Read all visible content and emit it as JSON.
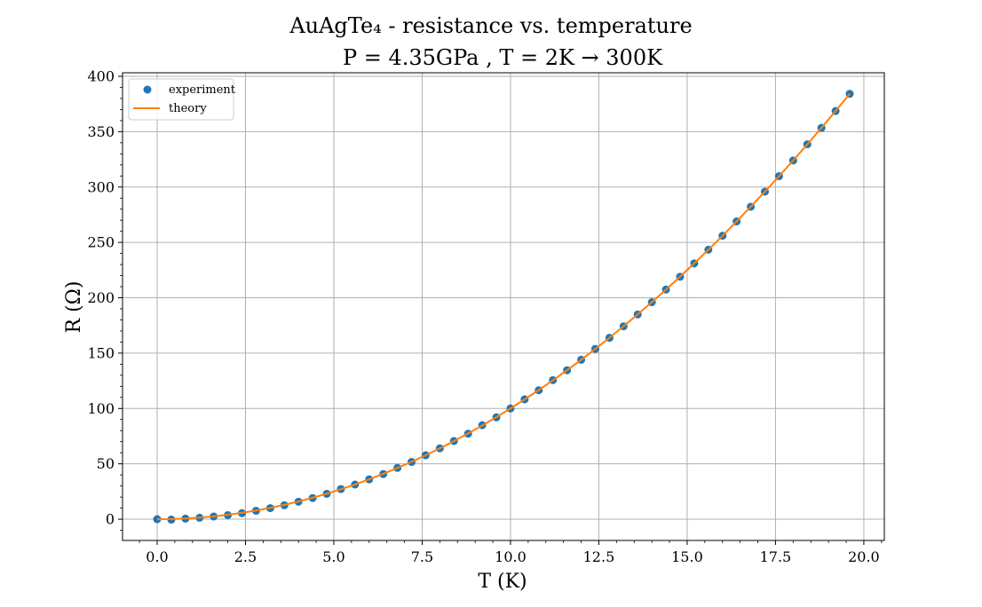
{
  "chart_data": {
    "type": "scatter",
    "title_lines": [
      "AuAgTe₄ - resistance vs. temperature",
      "P = 4.35GPa , T = 2K → 300K"
    ],
    "xlabel": "T (K)",
    "ylabel": "R (Ω)",
    "xlim": [
      -0.98,
      20.58
    ],
    "ylim": [
      -19.2,
      403.2
    ],
    "xticks": [
      0.0,
      2.5,
      5.0,
      7.5,
      10.0,
      12.5,
      15.0,
      17.5,
      20.0
    ],
    "xtick_labels": [
      "0.0",
      "2.5",
      "5.0",
      "7.5",
      "10.0",
      "12.5",
      "15.0",
      "17.5",
      "20.0"
    ],
    "yticks": [
      0,
      50,
      100,
      150,
      200,
      250,
      300,
      350,
      400
    ],
    "ytick_labels": [
      "0",
      "50",
      "100",
      "150",
      "200",
      "250",
      "300",
      "350",
      "400"
    ],
    "grid": true,
    "legend_position": "upper-left",
    "series": [
      {
        "name": "experiment",
        "kind": "scatter",
        "color": "#1f77b4",
        "x": [
          0.0,
          0.4,
          0.8,
          1.2,
          1.6,
          2.0,
          2.4,
          2.8,
          3.2,
          3.6,
          4.0,
          4.4,
          4.8,
          5.2,
          5.6,
          6.0,
          6.4,
          6.8,
          7.2,
          7.6,
          8.0,
          8.4,
          8.8,
          9.2,
          9.6,
          10.0,
          10.4,
          10.8,
          11.2,
          11.6,
          12.0,
          12.4,
          12.8,
          13.2,
          13.6,
          14.0,
          14.4,
          14.8,
          15.2,
          15.6,
          16.0,
          16.4,
          16.8,
          17.2,
          17.6,
          18.0,
          18.4,
          18.8,
          19.2,
          19.6
        ],
        "y": [
          0.0,
          -0.4,
          0.5,
          1.3,
          2.4,
          3.6,
          5.4,
          7.6,
          10.0,
          12.6,
          15.8,
          19.1,
          22.9,
          27.2,
          31.3,
          36.0,
          40.8,
          46.3,
          51.7,
          57.7,
          64.0,
          70.6,
          77.2,
          84.9,
          92.0,
          100.0,
          108.2,
          116.5,
          125.6,
          134.5,
          144.0,
          153.8,
          163.8,
          174.2,
          184.9,
          196.0,
          207.4,
          219.0,
          231.0,
          243.4,
          256.0,
          268.9,
          282.2,
          295.8,
          309.8,
          324.0,
          338.6,
          353.4,
          368.6,
          384.2
        ]
      },
      {
        "name": "theory",
        "kind": "line",
        "color": "#ff7f0e",
        "x": [
          0.0,
          0.4,
          0.8,
          1.2,
          1.6,
          2.0,
          2.4,
          2.8,
          3.2,
          3.6,
          4.0,
          4.4,
          4.8,
          5.2,
          5.6,
          6.0,
          6.4,
          6.8,
          7.2,
          7.6,
          8.0,
          8.4,
          8.8,
          9.2,
          9.6,
          10.0,
          10.4,
          10.8,
          11.2,
          11.6,
          12.0,
          12.4,
          12.8,
          13.2,
          13.6,
          14.0,
          14.4,
          14.8,
          15.2,
          15.6,
          16.0,
          16.4,
          16.8,
          17.2,
          17.6,
          18.0,
          18.4,
          18.8,
          19.2,
          19.6
        ],
        "y": [
          0.0,
          0.16,
          0.64,
          1.44,
          2.56,
          4.0,
          5.76,
          7.84,
          10.24,
          12.96,
          16.0,
          19.36,
          23.04,
          27.04,
          31.36,
          36.0,
          40.96,
          46.24,
          51.84,
          57.76,
          64.0,
          70.56,
          77.44,
          84.64,
          92.16,
          100.0,
          108.16,
          116.64,
          125.44,
          134.56,
          144.0,
          153.76,
          163.84,
          174.24,
          184.96,
          196.0,
          207.36,
          219.04,
          231.04,
          243.36,
          256.0,
          268.96,
          282.24,
          295.84,
          309.76,
          324.0,
          338.56,
          353.44,
          368.64,
          384.16
        ]
      }
    ]
  }
}
